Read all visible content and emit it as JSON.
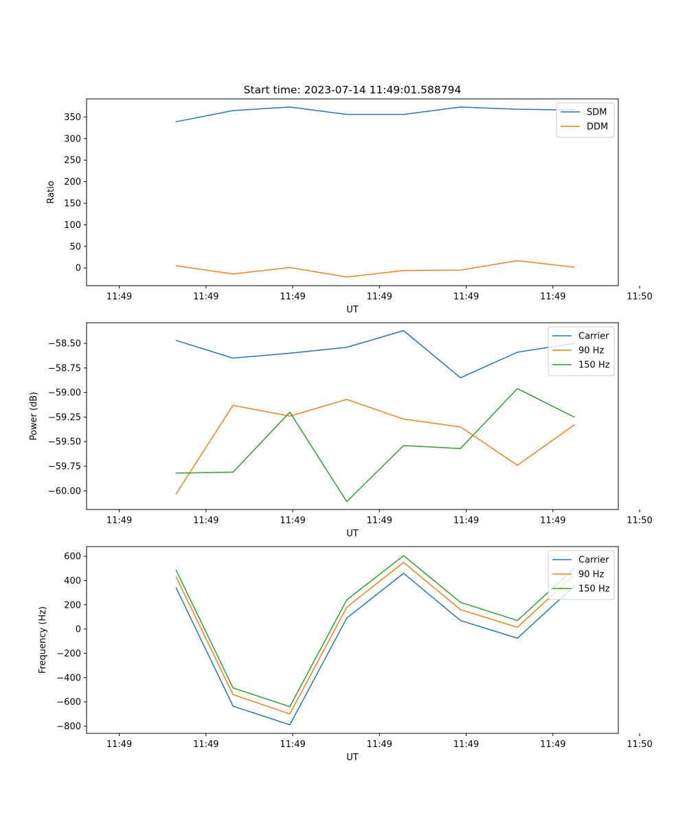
{
  "chart_data": [
    {
      "type": "line",
      "title": "Start time: 2023-07-14 11:49:01.588794",
      "xlabel": "UT",
      "ylabel": "Ratio",
      "x": [
        0.8,
        1.6,
        2.4,
        3.2,
        4.0,
        4.8,
        5.6,
        6.4
      ],
      "xlim": [
        -0.46,
        7.02
      ],
      "x_ticks": [
        0,
        1.22,
        2.44,
        3.66,
        4.88,
        6.1,
        7.32
      ],
      "x_tick_labels": [
        "11:49",
        "11:49",
        "11:49",
        "11:49",
        "11:49",
        "11:49",
        "11:50"
      ],
      "ylim": [
        -41,
        392
      ],
      "y_ticks": [
        0,
        50,
        100,
        150,
        200,
        250,
        300,
        350
      ],
      "y_tick_labels": [
        "0",
        "50",
        "100",
        "150",
        "200",
        "250",
        "300",
        "350"
      ],
      "legend_position": "top-right",
      "series": [
        {
          "name": "SDM",
          "color": "#1f77b4",
          "values": [
            339,
            365,
            373,
            356,
            356,
            373,
            368,
            366
          ]
        },
        {
          "name": "DDM",
          "color": "#ff7f0e",
          "values": [
            5,
            -14,
            1,
            -21,
            -6,
            -5,
            17,
            2
          ]
        }
      ]
    },
    {
      "type": "line",
      "title": "",
      "xlabel": "UT",
      "ylabel": "Power (dB)",
      "x": [
        0.8,
        1.6,
        2.4,
        3.2,
        4.0,
        4.8,
        5.6,
        6.4
      ],
      "xlim": [
        -0.46,
        7.02
      ],
      "x_ticks": [
        0,
        1.22,
        2.44,
        3.66,
        4.88,
        6.1,
        7.32
      ],
      "x_tick_labels": [
        "11:49",
        "11:49",
        "11:49",
        "11:49",
        "11:49",
        "11:49",
        "11:50"
      ],
      "ylim": [
        -60.19,
        -58.29
      ],
      "y_ticks": [
        -58.5,
        -58.75,
        -59.0,
        -59.25,
        -59.5,
        -59.75,
        -60.0
      ],
      "y_tick_labels": [
        "−58.50",
        "−58.75",
        "−59.00",
        "−59.25",
        "−59.50",
        "−59.75",
        "−60.00"
      ],
      "legend_position": "top-right",
      "series": [
        {
          "name": "Carrier",
          "color": "#1f77b4",
          "values": [
            -58.47,
            -58.65,
            -58.6,
            -58.54,
            -58.37,
            -58.85,
            -58.59,
            -58.5
          ]
        },
        {
          "name": "90 Hz",
          "color": "#ff7f0e",
          "values": [
            -60.03,
            -59.13,
            -59.24,
            -59.07,
            -59.27,
            -59.35,
            -59.74,
            -59.33
          ]
        },
        {
          "name": "150 Hz",
          "color": "#2ca02c",
          "values": [
            -59.82,
            -59.81,
            -59.2,
            -60.11,
            -59.54,
            -59.57,
            -58.96,
            -59.25
          ]
        }
      ]
    },
    {
      "type": "line",
      "title": "",
      "xlabel": "UT",
      "ylabel": "Frequency (Hz)",
      "x": [
        0.8,
        1.6,
        2.4,
        3.2,
        4.0,
        4.8,
        5.6,
        6.4
      ],
      "xlim": [
        -0.46,
        7.02
      ],
      "x_ticks": [
        0,
        1.22,
        2.44,
        3.66,
        4.88,
        6.1,
        7.32
      ],
      "x_tick_labels": [
        "11:49",
        "11:49",
        "11:49",
        "11:49",
        "11:49",
        "11:49",
        "11:50"
      ],
      "ylim": [
        -860,
        680
      ],
      "y_ticks": [
        600,
        400,
        200,
        0,
        -200,
        -400,
        -600,
        -800
      ],
      "y_tick_labels": [
        "600",
        "400",
        "200",
        "0",
        "−200",
        "−400",
        "−600",
        "−800"
      ],
      "legend_position": "top-right",
      "series": [
        {
          "name": "Carrier",
          "color": "#1f77b4",
          "values": [
            340,
            -635,
            -790,
            90,
            460,
            70,
            -75,
            355
          ]
        },
        {
          "name": "90 Hz",
          "color": "#ff7f0e",
          "values": [
            430,
            -540,
            -700,
            180,
            550,
            160,
            15,
            445
          ]
        },
        {
          "name": "150 Hz",
          "color": "#2ca02c",
          "values": [
            485,
            -485,
            -640,
            240,
            605,
            220,
            70,
            500
          ]
        }
      ]
    }
  ]
}
